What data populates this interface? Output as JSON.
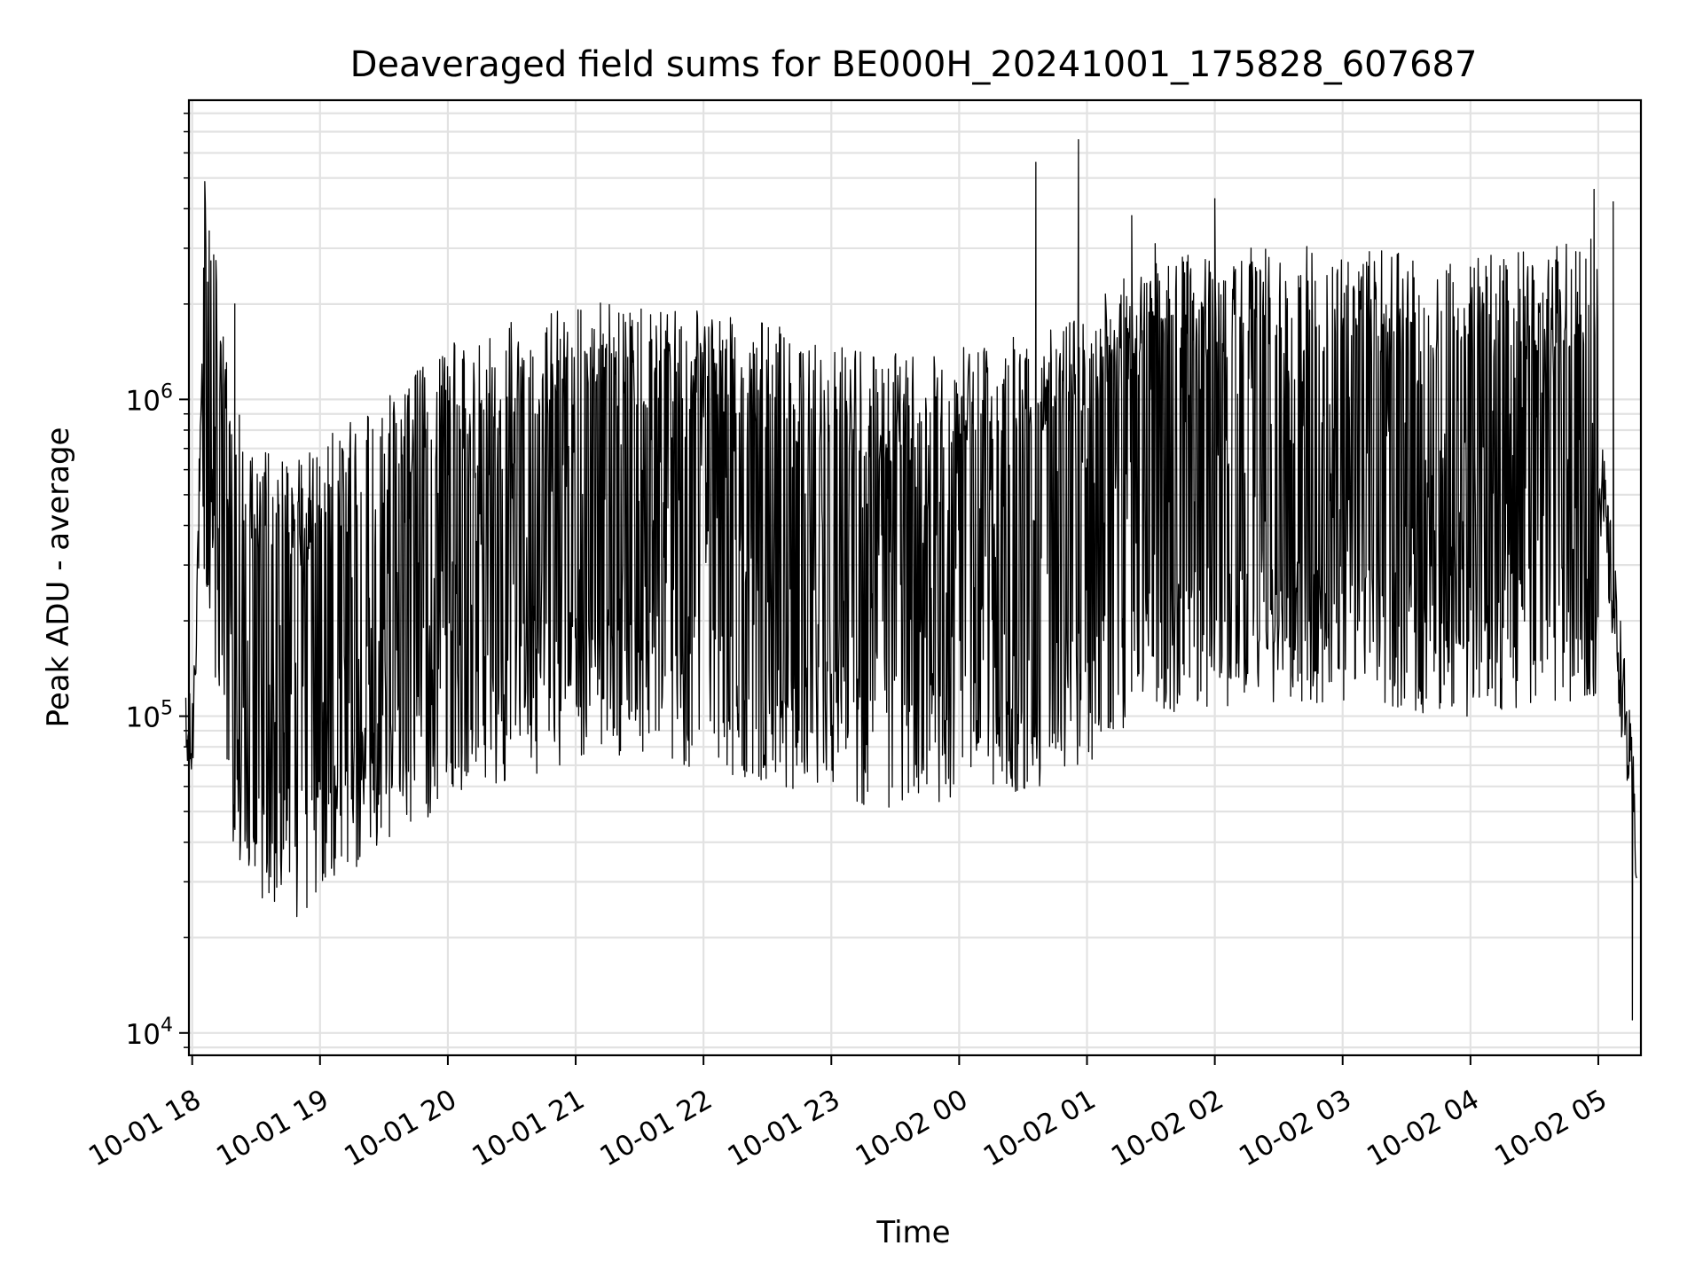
{
  "chart_data": {
    "type": "line",
    "title": "Deaveraged field sums for BE000H_20241001_175828_607687",
    "xlabel": "Time",
    "ylabel": "Peak ADU - average",
    "yscale": "log",
    "ylim": [
      8500,
      8800000
    ],
    "xlim": [
      "2024-10-01T17:58:28",
      "2024-10-02T05:20:00"
    ],
    "x_tick_labels": [
      "10-01 18",
      "10-01 19",
      "10-01 20",
      "10-01 21",
      "10-01 22",
      "10-01 23",
      "10-02 00",
      "10-02 01",
      "10-02 02",
      "10-02 03",
      "10-02 04",
      "10-02 05"
    ],
    "y_tick_labels": [
      {
        "base": "10",
        "exp": "4"
      },
      {
        "base": "10",
        "exp": "5"
      },
      {
        "base": "10",
        "exp": "6"
      }
    ],
    "grid": true,
    "line_color": "#000000",
    "series": [
      {
        "values_note": "",
        "x": [
          "2024-10-01T18:00",
          "2024-10-01T18:05",
          "2024-10-01T18:10",
          "2024-10-01T18:15",
          "2024-10-01T18:20",
          "2024-10-01T18:30",
          "2024-10-01T18:40",
          "2024-10-01T18:50",
          "2024-10-01T19:00",
          "2024-10-01T19:30",
          "2024-10-01T20:00",
          "2024-10-01T20:30",
          "2024-10-01T21:00",
          "2024-10-01T21:30",
          "2024-10-01T22:00",
          "2024-10-01T22:30",
          "2024-10-01T23:00",
          "2024-10-01T23:30",
          "2024-10-02T00:00",
          "2024-10-02T00:30",
          "2024-10-02T01:00",
          "2024-10-02T01:30",
          "2024-10-02T02:00",
          "2024-10-02T02:30",
          "2024-10-02T03:00",
          "2024-10-02T03:30",
          "2024-10-02T04:00",
          "2024-10-02T04:30",
          "2024-10-02T05:00",
          "2024-10-02T05:10",
          "2024-10-02T05:18"
        ],
        "values": [
          80000,
          1100000,
          800000,
          400000,
          200000,
          150000,
          140000,
          130000,
          150000,
          200000,
          300000,
          350000,
          400000,
          420000,
          380000,
          350000,
          300000,
          280000,
          300000,
          320000,
          400000,
          550000,
          600000,
          620000,
          600000,
          580000,
          560000,
          600000,
          650000,
          150000,
          40000
        ]
      }
    ],
    "spikes": [
      {
        "x": "2024-10-01T18:08",
        "value": 3400000
      },
      {
        "x": "2024-10-01T18:20",
        "value": 2000000
      },
      {
        "x": "2024-10-02T00:36",
        "value": 5600000
      },
      {
        "x": "2024-10-02T00:56",
        "value": 6600000
      },
      {
        "x": "2024-10-02T01:21",
        "value": 3800000
      },
      {
        "x": "2024-10-02T01:32",
        "value": 3100000
      },
      {
        "x": "2024-10-02T02:00",
        "value": 4300000
      },
      {
        "x": "2024-10-02T02:17",
        "value": 3000000
      },
      {
        "x": "2024-10-02T04:58",
        "value": 4600000
      },
      {
        "x": "2024-10-02T05:07",
        "value": 4200000
      },
      {
        "x": "2024-10-02T05:16",
        "value": 11000
      }
    ]
  }
}
